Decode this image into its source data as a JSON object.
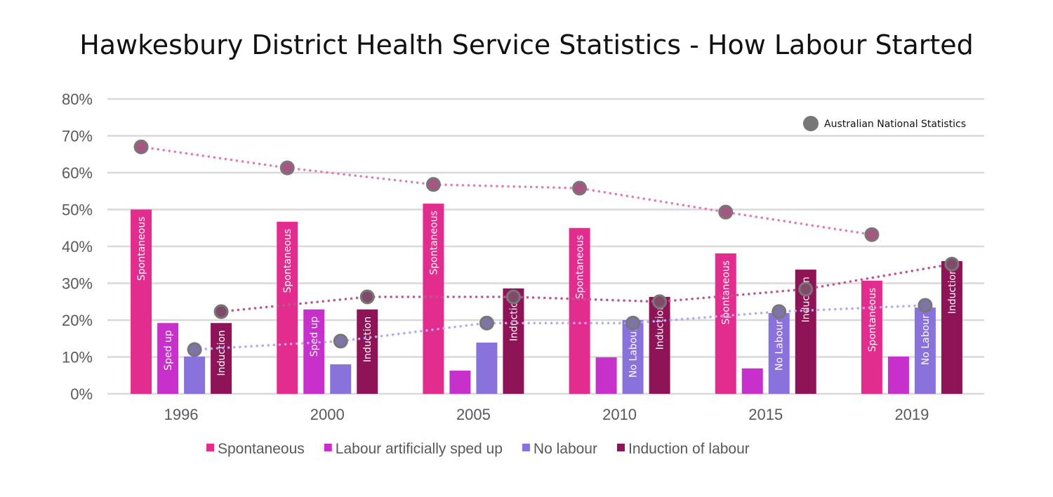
{
  "chart_data": {
    "type": "bar",
    "title": "Hawkesbury District Health Service Statistics - How Labour Started",
    "categories": [
      "1996",
      "2000",
      "2005",
      "2010",
      "2015",
      "2019"
    ],
    "ylim": [
      0,
      80
    ],
    "y_ticks": [
      "0%",
      "10%",
      "20%",
      "30%",
      "40%",
      "50%",
      "60%",
      "70%",
      "80%"
    ],
    "grid": true,
    "legend_position": "bottom",
    "series": [
      {
        "name": "Spontaneous",
        "color": "#e22d8e",
        "values": [
          50,
          46.7,
          51.6,
          45,
          38.1,
          30.7
        ],
        "bar_labels": [
          "Spontaneous",
          "Spontaneous",
          "Spontaneous",
          "Spontaneous",
          "Spontaneous",
          "Spontaneous"
        ]
      },
      {
        "name": "Labour artificially sped up",
        "color": "#c830cc",
        "values": [
          19.2,
          22.9,
          6.3,
          9.9,
          6.9,
          10.1
        ],
        "bar_labels": [
          "Sped up",
          "Sped up",
          "",
          "",
          "",
          ""
        ]
      },
      {
        "name": "No labour",
        "color": "#8a72dd",
        "values": [
          10.1,
          8,
          13.9,
          20,
          21.9,
          23.4
        ],
        "bar_labels": [
          "",
          "",
          "",
          "No Labour",
          "No Labour",
          "No Labour"
        ]
      },
      {
        "name": "Induction of labour",
        "color": "#8e1457",
        "values": [
          19.2,
          22.9,
          28.6,
          26.3,
          33.7,
          36
        ],
        "bar_labels": [
          "Induction",
          "Induction",
          "Induction",
          "Induction",
          "Induction",
          "Induction"
        ]
      }
    ],
    "overlay": {
      "name": "Australian National Statistics",
      "marker_color": "#777777",
      "type": "scatter-dotted-line",
      "series": [
        {
          "matches": "Spontaneous",
          "line_color": "#e07fb5",
          "values": [
            67,
            61.3,
            56.8,
            55.8,
            49.3,
            43.2
          ]
        },
        {
          "matches": "Induction of labour",
          "line_color": "#b85a8e",
          "values": [
            22.3,
            26.3,
            26.3,
            25,
            28.4,
            35.2
          ]
        },
        {
          "matches": "No labour",
          "line_color": "#b8a8f0",
          "values": [
            12,
            14.3,
            19.2,
            19.2,
            22.3,
            24
          ]
        }
      ]
    }
  }
}
